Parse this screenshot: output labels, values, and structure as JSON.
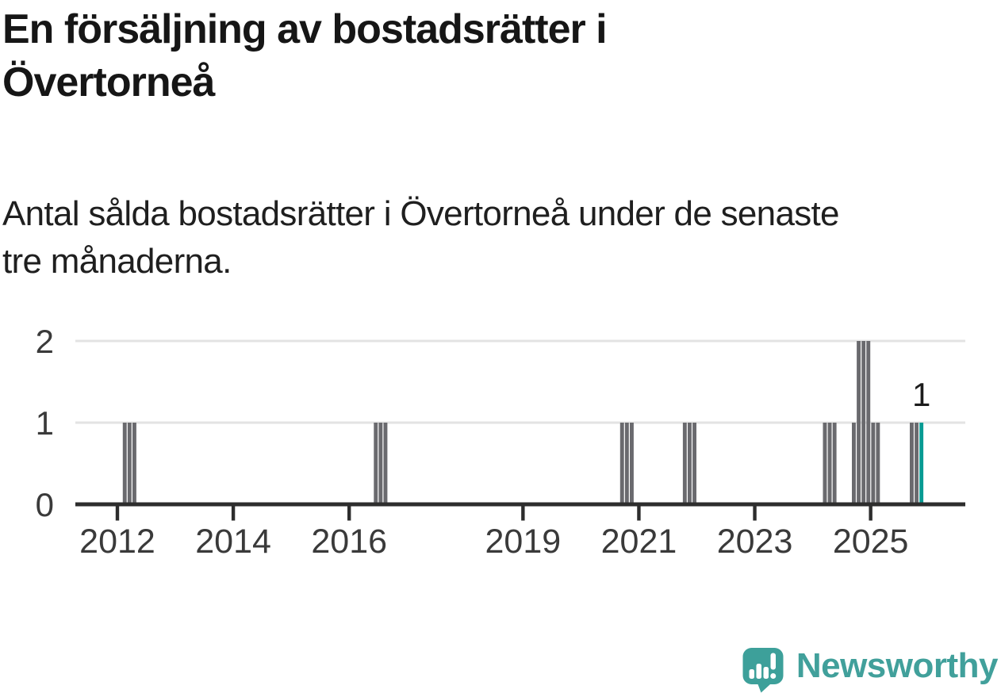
{
  "chart_data": {
    "type": "bar",
    "title": "En försäljning av bostadsrätter i\nÖvertorneå",
    "subtitle": "Antal sålda bostadsrätter i Övertorneå under de senaste\ntre månaderna.",
    "x_axis": {
      "tick_years": [
        2012,
        2014,
        2016,
        2019,
        2021,
        2023,
        2025
      ]
    },
    "y_axis": {
      "ticks": [
        0,
        1,
        2
      ],
      "range": [
        0,
        2
      ],
      "gridlines": true
    },
    "points": [
      {
        "month": "2012-02",
        "value": 1
      },
      {
        "month": "2012-03",
        "value": 1
      },
      {
        "month": "2012-04",
        "value": 1
      },
      {
        "month": "2016-06",
        "value": 1
      },
      {
        "month": "2016-07",
        "value": 1
      },
      {
        "month": "2016-08",
        "value": 1
      },
      {
        "month": "2020-09",
        "value": 1
      },
      {
        "month": "2020-10",
        "value": 1
      },
      {
        "month": "2020-11",
        "value": 1
      },
      {
        "month": "2021-10",
        "value": 1
      },
      {
        "month": "2021-11",
        "value": 1
      },
      {
        "month": "2021-12",
        "value": 1
      },
      {
        "month": "2024-03",
        "value": 1
      },
      {
        "month": "2024-04",
        "value": 1
      },
      {
        "month": "2024-05",
        "value": 1
      },
      {
        "month": "2024-09",
        "value": 1
      },
      {
        "month": "2024-10",
        "value": 2
      },
      {
        "month": "2024-11",
        "value": 2
      },
      {
        "month": "2024-12",
        "value": 2
      },
      {
        "month": "2025-01",
        "value": 1
      },
      {
        "month": "2025-02",
        "value": 1
      },
      {
        "month": "2025-09",
        "value": 1
      },
      {
        "month": "2025-10",
        "value": 1
      },
      {
        "month": "2025-11",
        "value": 1
      }
    ],
    "highlight_month": "2025-11",
    "annotation": {
      "text": "1",
      "month": "2025-11"
    },
    "colors": {
      "bar": "#6a6a6e",
      "highlight_bar": "#089b93",
      "gridline": "#e3e3e3",
      "axis": "#2d2d2d",
      "tick_label": "#3a3a3a",
      "annotation": "#1c1c1c"
    }
  },
  "branding": {
    "name": "Newsworthy",
    "color": "#41a09b",
    "icon_color": "#3da09a",
    "icon": "speech-bubble-with-bar-chart-and-exclamation"
  }
}
